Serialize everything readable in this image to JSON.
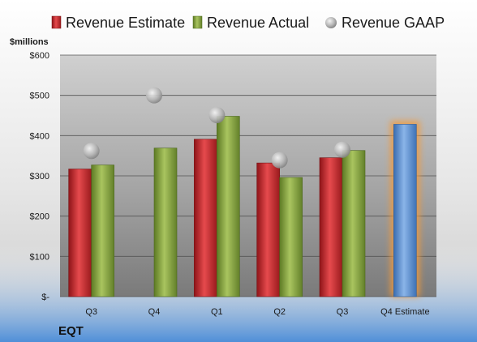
{
  "chart_data": {
    "type": "bar",
    "ticker": "EQT",
    "ylabel": "$millions",
    "ylim": [
      0,
      600
    ],
    "yticks": [
      {
        "value": 0,
        "label": "$-"
      },
      {
        "value": 100,
        "label": "$100"
      },
      {
        "value": 200,
        "label": "$200"
      },
      {
        "value": 300,
        "label": "$300"
      },
      {
        "value": 400,
        "label": "$400"
      },
      {
        "value": 500,
        "label": "$500"
      },
      {
        "value": 600,
        "label": "$600"
      }
    ],
    "categories": [
      "Q3",
      "Q4",
      "Q1",
      "Q2",
      "Q3",
      "Q4 Estimate"
    ],
    "series": [
      {
        "name": "Revenue Estimate",
        "kind": "bar",
        "color": "#c0282b",
        "values": [
          317,
          null,
          391,
          332,
          345,
          null
        ]
      },
      {
        "name": "Revenue Actual",
        "kind": "bar",
        "color": "#86a43f",
        "values": [
          327,
          369,
          448,
          296,
          363,
          null
        ]
      },
      {
        "name": "Revenue GAAP",
        "kind": "marker",
        "color": "#b8b8b8",
        "values": [
          362,
          500,
          451,
          339,
          365,
          null
        ]
      },
      {
        "name": "Q4 Estimate",
        "kind": "highlight-bar",
        "color": "#5b8fd0",
        "glow": "#f39a3a",
        "values": [
          null,
          null,
          null,
          null,
          null,
          428
        ]
      }
    ],
    "legend_position": "top",
    "grid": true
  }
}
